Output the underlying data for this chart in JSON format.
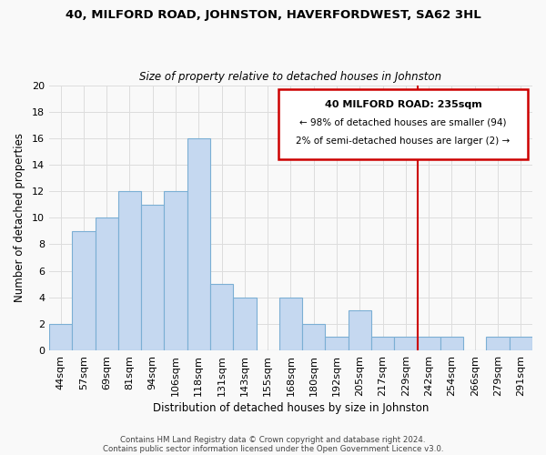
{
  "title": "40, MILFORD ROAD, JOHNSTON, HAVERFORDWEST, SA62 3HL",
  "subtitle": "Size of property relative to detached houses in Johnston",
  "xlabel": "Distribution of detached houses by size in Johnston",
  "ylabel": "Number of detached properties",
  "bar_labels": [
    "44sqm",
    "57sqm",
    "69sqm",
    "81sqm",
    "94sqm",
    "106sqm",
    "118sqm",
    "131sqm",
    "143sqm",
    "155sqm",
    "168sqm",
    "180sqm",
    "192sqm",
    "205sqm",
    "217sqm",
    "229sqm",
    "242sqm",
    "254sqm",
    "266sqm",
    "279sqm",
    "291sqm"
  ],
  "bar_heights": [
    2,
    9,
    10,
    12,
    11,
    12,
    16,
    5,
    4,
    0,
    4,
    2,
    1,
    3,
    1,
    1,
    1,
    1,
    0,
    1,
    1
  ],
  "bar_color": "#c5d8f0",
  "bar_edge_color": "#7bafd4",
  "ylim": [
    0,
    20
  ],
  "yticks": [
    0,
    2,
    4,
    6,
    8,
    10,
    12,
    14,
    16,
    18,
    20
  ],
  "marker_line_color": "#cc0000",
  "annotation_line1": "40 MILFORD ROAD: 235sqm",
  "annotation_line2": "← 98% of detached houses are smaller (94)",
  "annotation_line3": "2% of semi-detached houses are larger (2) →",
  "footer1": "Contains HM Land Registry data © Crown copyright and database right 2024.",
  "footer2": "Contains public sector information licensed under the Open Government Licence v3.0.",
  "grid_color": "#dddddd",
  "background_color": "#f9f9f9"
}
